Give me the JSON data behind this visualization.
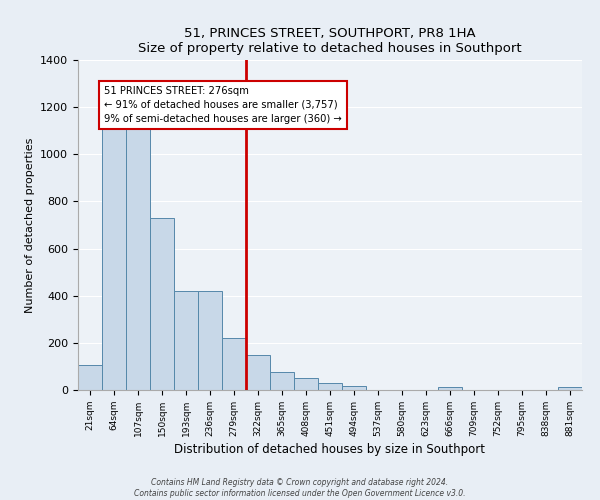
{
  "title": "51, PRINCES STREET, SOUTHPORT, PR8 1HA",
  "subtitle": "Size of property relative to detached houses in Southport",
  "xlabel": "Distribution of detached houses by size in Southport",
  "ylabel": "Number of detached properties",
  "bar_labels": [
    "21sqm",
    "64sqm",
    "107sqm",
    "150sqm",
    "193sqm",
    "236sqm",
    "279sqm",
    "322sqm",
    "365sqm",
    "408sqm",
    "451sqm",
    "494sqm",
    "537sqm",
    "580sqm",
    "623sqm",
    "666sqm",
    "709sqm",
    "752sqm",
    "795sqm",
    "838sqm",
    "881sqm"
  ],
  "bar_values": [
    107,
    1160,
    1160,
    730,
    420,
    420,
    220,
    150,
    75,
    50,
    28,
    18,
    0,
    0,
    0,
    13,
    0,
    0,
    0,
    0,
    13
  ],
  "bar_color": "#c8d8e8",
  "bar_edge_color": "#5588aa",
  "vline_index": 6,
  "vline_color": "#cc0000",
  "annotation_line1": "51 PRINCES STREET: 276sqm",
  "annotation_line2": "← 91% of detached houses are smaller (3,757)",
  "annotation_line3": "9% of semi-detached houses are larger (360) →",
  "annotation_box_color": "#ffffff",
  "annotation_box_edge": "#cc0000",
  "ylim": [
    0,
    1400
  ],
  "yticks": [
    0,
    200,
    400,
    600,
    800,
    1000,
    1200,
    1400
  ],
  "bg_color": "#e8eef5",
  "plot_bg_color": "#edf2f7",
  "footer1": "Contains HM Land Registry data © Crown copyright and database right 2024.",
  "footer2": "Contains public sector information licensed under the Open Government Licence v3.0."
}
